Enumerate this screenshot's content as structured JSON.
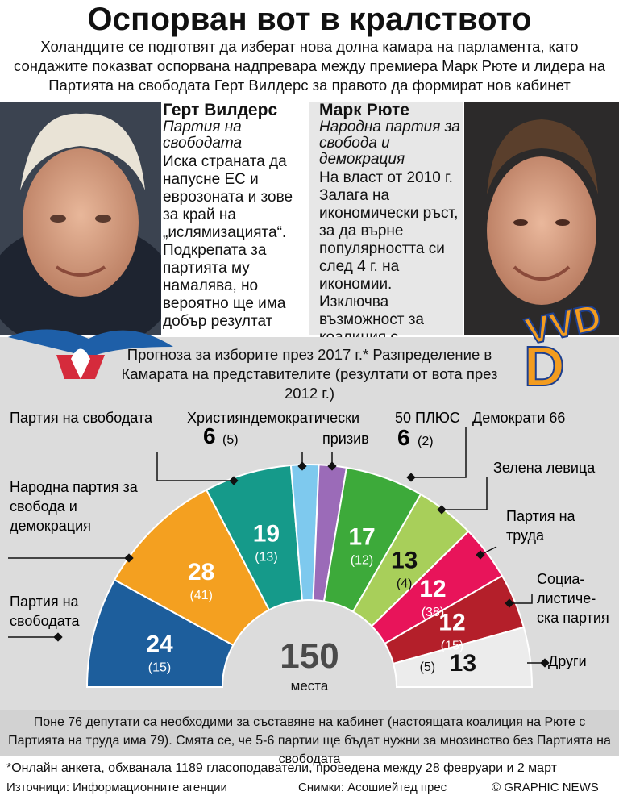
{
  "title": "Оспорван вот в кралството",
  "subtitle": "Холандците се подготвят да изберат нова долна камара на парламента, като сондажите показват оспорвана надпревара между премиера Марк Рюте и лидера на Партията на свободата Герт Вилдерс за правото да формират нов кабинет",
  "left_profile": {
    "name": "Герт Вилдерс",
    "party": "Партия на свободата",
    "description": "Иска страната да напусне ЕС и еврозоната и зове за край на „ислямизацията“. Подкрепата за партията му намалява, но вероятно ще има добър резултат"
  },
  "right_profile": {
    "name": "Марк Рюте",
    "party": "Народна партия за свобода и демокрация",
    "description": "На власт от 2010 г. Залага на икономически ръст, за да върне популярността си след 4 г. на икономии. Изключва възможност за коалиция с Вилдерс"
  },
  "vvd_logo_text": "VVD",
  "chart_heading": "Прогноза за изборите през 2017 г.* Разпределение в Камарата на представителите (резултати от вота през 2012 г.)",
  "chart_data": {
    "type": "hemicycle",
    "total_seats": 150,
    "total_label": "150",
    "total_unit": "места",
    "series": [
      {
        "name": "Партия на свободата",
        "seats": 24,
        "previous": 15,
        "color": "#1d5e9c"
      },
      {
        "name": "Народна партия за свобода и демокрация",
        "seats": 28,
        "previous": 41,
        "color": "#f4a020"
      },
      {
        "name": "Партия на свободата",
        "seats": 19,
        "previous": 13,
        "color": "#159a8a"
      },
      {
        "name": "Християндемократически призив",
        "seats": 6,
        "previous": 5,
        "color": "#7ec9ee"
      },
      {
        "name": "50 ПЛЮС",
        "seats": 6,
        "previous": 2,
        "color": "#9b6bb8"
      },
      {
        "name": "Демократи 66",
        "seats": 17,
        "previous": 12,
        "color": "#3daa3a"
      },
      {
        "name": "Зелена левица",
        "seats": 13,
        "previous": 4,
        "color": "#a8cf5a"
      },
      {
        "name": "Партия на труда",
        "seats": 12,
        "previous": 38,
        "color": "#e8145a"
      },
      {
        "name": "Социалистическа партия",
        "seats": 12,
        "previous": 15,
        "color": "#b41f2a"
      },
      {
        "name": "Други",
        "seats": 13,
        "previous": 5,
        "color": "#ececec"
      }
    ],
    "labels": {
      "pvv_top": "Партия на свободата",
      "vvd": [
        "Народна партия за",
        "свобода и",
        "демокрация"
      ],
      "pvv": [
        "Партия на",
        "свободата"
      ],
      "cda": [
        "Християндемократически",
        "призив"
      ],
      "cda_value": "6",
      "cda_prev": "(5)",
      "plus50": "50 ПЛЮС",
      "plus50_value": "6",
      "plus50_prev": "(2)",
      "d66": "Демократи 66",
      "gl": "Зелена левица",
      "pvda": [
        "Партия на",
        "труда"
      ],
      "sp": [
        "Социа-",
        "листиче-",
        "ска партия"
      ],
      "other": "Други"
    }
  },
  "note": "Поне 76 депутати са необходими за съставяне на кабинет (настоящата коалиция на Рюте с Партията на труда има 79). Смята се, че 5-6 партии ще бъдат нужни за мнозинство без Партията на свободата",
  "footnote": "*Онлайн анкета, обхванала 1189 гласоподаватели, проведена между 28 февруари и 2 март",
  "sources": "Източници: Информационните агенции",
  "photo_credit": "Снимки: Асошиейтед прес",
  "credit": "© GRAPHIC NEWS"
}
